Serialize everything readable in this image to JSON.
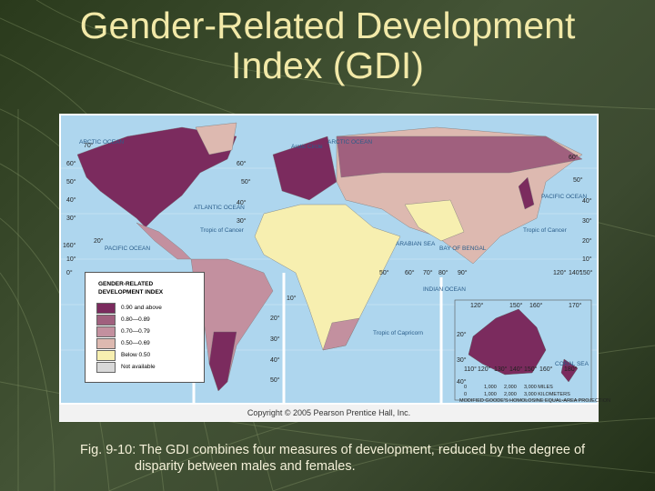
{
  "title": "Gender-Related Development Index (GDI)",
  "map": {
    "legend": {
      "title": "GENDER-RELATED DEVELOPMENT INDEX",
      "items": [
        {
          "label": "0.90 and above",
          "color": "#7b2b5e"
        },
        {
          "label": "0.80—0.89",
          "color": "#a0607e"
        },
        {
          "label": "0.70—0.79",
          "color": "#c3909f"
        },
        {
          "label": "0.50—0.69",
          "color": "#ddb9b0"
        },
        {
          "label": "Below 0.50",
          "color": "#f7efb0"
        },
        {
          "label": "Not available",
          "color": "#d8d8d8"
        }
      ]
    },
    "labels": [
      "ARCTIC OCEAN",
      "Arctic Circle",
      "ARCTIC OCEAN",
      "ATLANTIC OCEAN",
      "Tropic of Cancer",
      "PACIFIC OCEAN",
      "INDIAN OCEAN",
      "ARABIAN SEA",
      "BAY OF BENGAL",
      "PACIFIC OCEAN",
      "Tropic of Cancer",
      "Tropic of Capricorn",
      "CORAL SEA"
    ],
    "degree_labels": [
      "70°",
      "60°",
      "50°",
      "40°",
      "30°",
      "20°",
      "160°",
      "10°",
      "0°",
      "60°",
      "50°",
      "40°",
      "30°",
      "10°",
      "20°",
      "30°",
      "40°",
      "50°",
      "50°",
      "60°",
      "70°",
      "80°",
      "90°",
      "120°",
      "140°",
      "150°",
      "60°",
      "50°",
      "40°",
      "30°",
      "20°",
      "10°",
      "120°",
      "150°",
      "160°",
      "170°",
      "20°",
      "30°",
      "40°",
      "110°",
      "120°",
      "130°",
      "140°",
      "150°",
      "160°",
      "180°"
    ],
    "scale": {
      "miles": [
        "0",
        "1,000",
        "2,000",
        "3,000 MILES"
      ],
      "kilometers": [
        "0",
        "1,000",
        "2,000",
        "3,000 KILOMETERS"
      ]
    },
    "projection": "MODIFIED GOODE'S HOMOLOSINE EQUAL-AREA PROJECTION",
    "copyright": "Copyright © 2005 Pearson Prentice Hall, Inc."
  },
  "caption": "Fig. 9-10: The GDI combines four measures of development, reduced by the degree of disparity between males and females."
}
